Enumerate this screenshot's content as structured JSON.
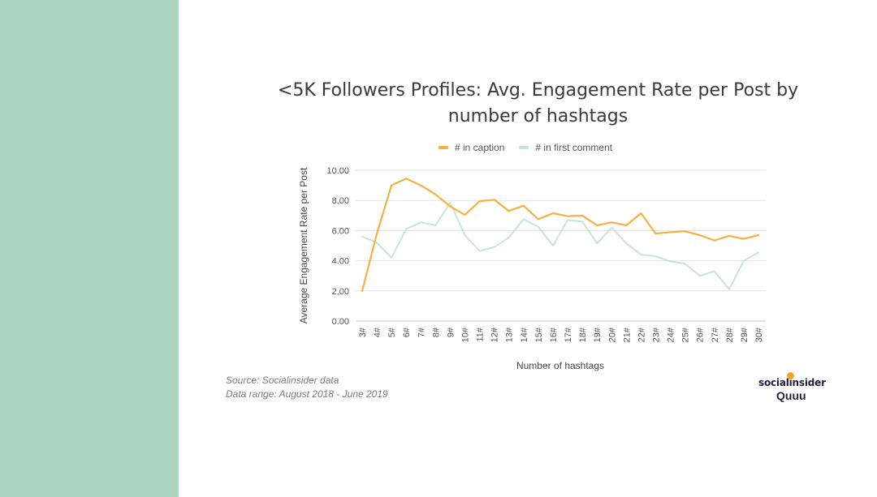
{
  "chart_data": {
    "type": "line",
    "title": "<5K Followers Profiles: Avg. Engagement Rate per Post by number of hashtags",
    "xlabel": "Number of hashtags",
    "ylabel": "Average Engagement Rate per Post",
    "ylim": [
      0,
      10
    ],
    "yticks": [
      "0.00",
      "2.00",
      "4.00",
      "6.00",
      "8.00",
      "10.00"
    ],
    "grid": true,
    "legend": "top-center",
    "categories": [
      "3#",
      "4#",
      "5#",
      "6#",
      "7#",
      "8#",
      "9#",
      "10#",
      "11#",
      "12#",
      "13#",
      "14#",
      "15#",
      "16#",
      "17#",
      "18#",
      "19#",
      "20#",
      "21#",
      "22#",
      "23#",
      "24#",
      "25#",
      "26#",
      "27#",
      "28#",
      "29#",
      "30#"
    ],
    "series": [
      {
        "name": "# in caption",
        "color": "#f5b041",
        "values": [
          2.0,
          5.8,
          9.0,
          9.45,
          9.0,
          8.4,
          7.6,
          7.05,
          7.95,
          8.05,
          7.3,
          7.65,
          6.75,
          7.15,
          6.95,
          7.0,
          6.35,
          6.55,
          6.35,
          7.15,
          5.8,
          5.9,
          5.95,
          5.7,
          5.35,
          5.65,
          5.45,
          5.7
        ]
      },
      {
        "name": "# in first comment",
        "color": "#c3e6d6",
        "values": [
          5.6,
          5.2,
          4.2,
          6.1,
          6.55,
          6.35,
          7.85,
          5.7,
          4.65,
          4.9,
          5.55,
          6.75,
          6.25,
          5.0,
          6.7,
          6.6,
          5.15,
          6.2,
          5.15,
          4.4,
          4.3,
          3.95,
          3.8,
          3.0,
          3.3,
          2.1,
          4.0,
          4.55
        ]
      }
    ]
  },
  "footer": {
    "source": "Source: Socialinsider data",
    "range": "Data range: August 2018 - June 2019"
  },
  "logo": {
    "brand": "socialinsider",
    "sub": "Quuu"
  }
}
